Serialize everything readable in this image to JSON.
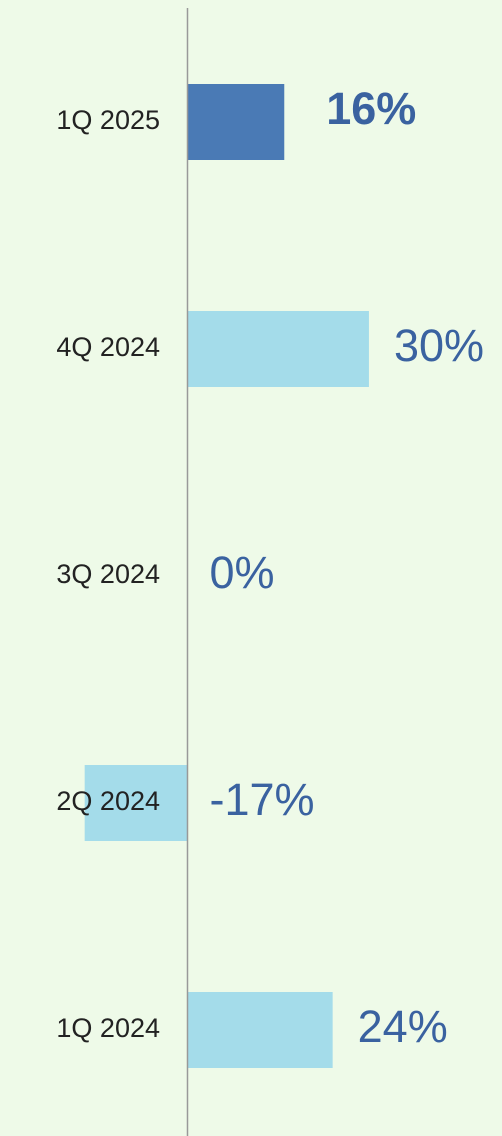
{
  "chart_data": {
    "type": "barh",
    "categories": [
      "1Q 2025",
      "4Q 2024",
      "3Q 2024",
      "2Q 2024",
      "1Q 2024"
    ],
    "values": [
      16,
      30,
      0,
      -17,
      24
    ],
    "value_labels": [
      "16%",
      "30%",
      "0%",
      "-17%",
      "24%"
    ],
    "colors": [
      "#4a7ab5",
      "#a4dcea",
      "#a4dcea",
      "#a4dcea",
      "#a4dcea"
    ],
    "label_color": "#3a62a0",
    "highlight_index": 0,
    "xlim": [
      -31,
      52
    ]
  }
}
